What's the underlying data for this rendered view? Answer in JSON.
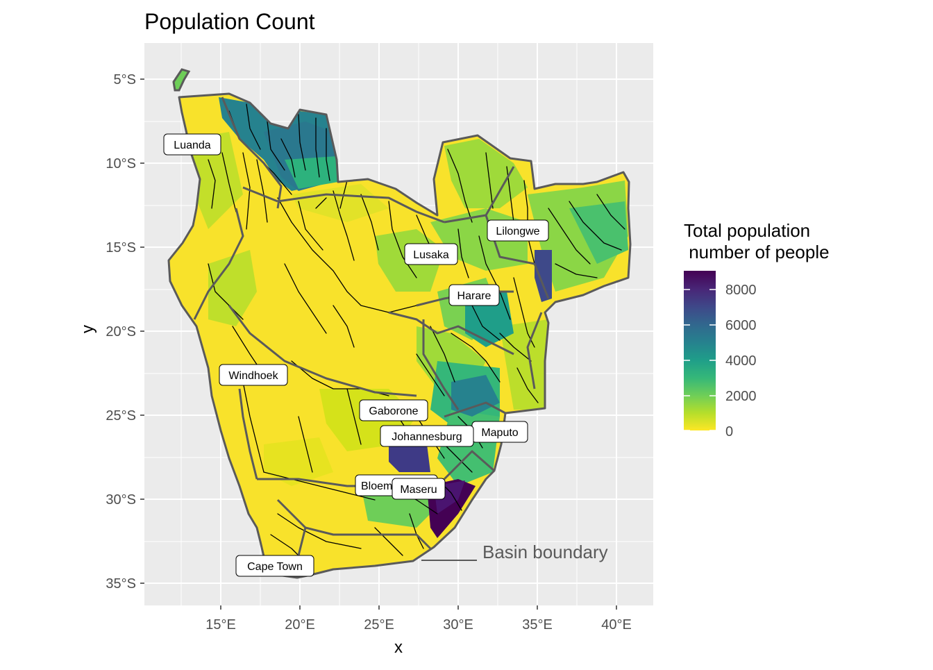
{
  "title": "Population Count",
  "axes": {
    "xlabel": "x",
    "ylabel": "y",
    "xticks": [
      "15°E",
      "20°E",
      "25°E",
      "30°E",
      "35°E",
      "40°E"
    ],
    "yticks": [
      "5°S",
      "10°S",
      "15°S",
      "20°S",
      "25°S",
      "30°S",
      "35°S"
    ]
  },
  "legend": {
    "title_line1": "Total population",
    "title_line2": " number of people",
    "ticks": [
      "8000",
      "6000",
      "4000",
      "2000",
      "0"
    ]
  },
  "annotation": "Basin boundary",
  "cities": [
    {
      "name": "Luanda"
    },
    {
      "name": "Lilongwe"
    },
    {
      "name": "Lusaka"
    },
    {
      "name": "Harare"
    },
    {
      "name": "Windhoek"
    },
    {
      "name": "Gaborone"
    },
    {
      "name": "Johannesburg"
    },
    {
      "name": "Maputo"
    },
    {
      "name": "Bloemfontein"
    },
    {
      "name": "Maseru"
    },
    {
      "name": "Cape Town"
    }
  ],
  "colors": {
    "panel": "#EBEBEB",
    "grid": "#FFFFFF",
    "land_low": "#F5E12A",
    "boundary": "#5A5A5A",
    "river": "#000000",
    "viridis": [
      "#FDE725",
      "#B5DE2B",
      "#6ECE58",
      "#35B779",
      "#1F9E89",
      "#26828E",
      "#31688E",
      "#3E4989",
      "#482878",
      "#440154"
    ]
  }
}
